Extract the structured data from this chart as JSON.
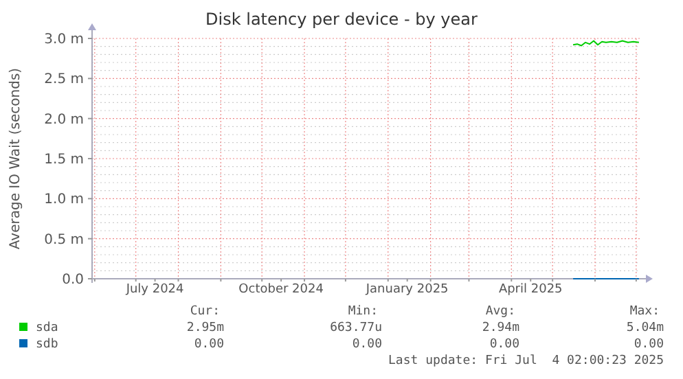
{
  "chart_data": {
    "type": "line",
    "title": "Disk latency per device - by year",
    "ylabel": "Average IO Wait (seconds)",
    "xlim": [
      "2024-05-30T02:00",
      "2025-07-04T02:00"
    ],
    "xticks": [
      {
        "value": "2024-06-01",
        "label": null
      },
      {
        "value": "2024-07-01",
        "label": null
      },
      {
        "value": "2024-07-15",
        "label": "July 2024"
      },
      {
        "value": "2024-08-01",
        "label": null
      },
      {
        "value": "2024-09-01",
        "label": null
      },
      {
        "value": "2024-10-01",
        "label": null
      },
      {
        "value": "2024-10-15",
        "label": "October 2024"
      },
      {
        "value": "2024-11-01",
        "label": null
      },
      {
        "value": "2024-12-01",
        "label": null
      },
      {
        "value": "2025-01-01",
        "label": null
      },
      {
        "value": "2025-01-15",
        "label": "January 2025"
      },
      {
        "value": "2025-02-01",
        "label": null
      },
      {
        "value": "2025-03-01",
        "label": null
      },
      {
        "value": "2025-04-01",
        "label": null
      },
      {
        "value": "2025-04-15",
        "label": "April 2025"
      },
      {
        "value": "2025-05-01",
        "label": null
      },
      {
        "value": "2025-06-01",
        "label": null
      },
      {
        "value": "2025-07-01",
        "label": null
      }
    ],
    "ylim": [
      0,
      3.0
    ],
    "yticks": [
      {
        "value": 0,
        "label": "0.0"
      },
      {
        "value": 0.5,
        "label": "0.5 m"
      },
      {
        "value": 1.0,
        "label": "1.0 m"
      },
      {
        "value": 1.5,
        "label": "1.5 m"
      },
      {
        "value": 2.0,
        "label": "2.0 m"
      },
      {
        "value": 2.5,
        "label": "2.5 m"
      },
      {
        "value": 3.0,
        "label": "3.0 m"
      }
    ],
    "grid": true,
    "legend": "bottom",
    "series": [
      {
        "name": "sda",
        "color": "#00cc00",
        "x": [
          "2025-05-16",
          "2025-05-19",
          "2025-05-22",
          "2025-05-25",
          "2025-05-28",
          "2025-05-31",
          "2025-06-03",
          "2025-06-06",
          "2025-06-09",
          "2025-06-13",
          "2025-06-17",
          "2025-06-21",
          "2025-06-25",
          "2025-06-29",
          "2025-07-03"
        ],
        "values": [
          2.92,
          2.93,
          2.91,
          2.95,
          2.93,
          2.97,
          2.92,
          2.96,
          2.95,
          2.96,
          2.95,
          2.97,
          2.95,
          2.96,
          2.95
        ]
      },
      {
        "name": "sdb",
        "color": "#0066b3",
        "x": [
          "2025-05-16",
          "2025-07-03"
        ],
        "values": [
          0,
          0
        ]
      }
    ],
    "annotations": [
      "Cur:",
      "Min:",
      "Avg:",
      "Max:",
      "2.95m",
      "663.77u",
      "2.94m",
      "5.04m",
      "0.00",
      "0.00",
      "0.00",
      "0.00",
      "Last update: Fri Jul  4 02:00:23 2025"
    ]
  }
}
